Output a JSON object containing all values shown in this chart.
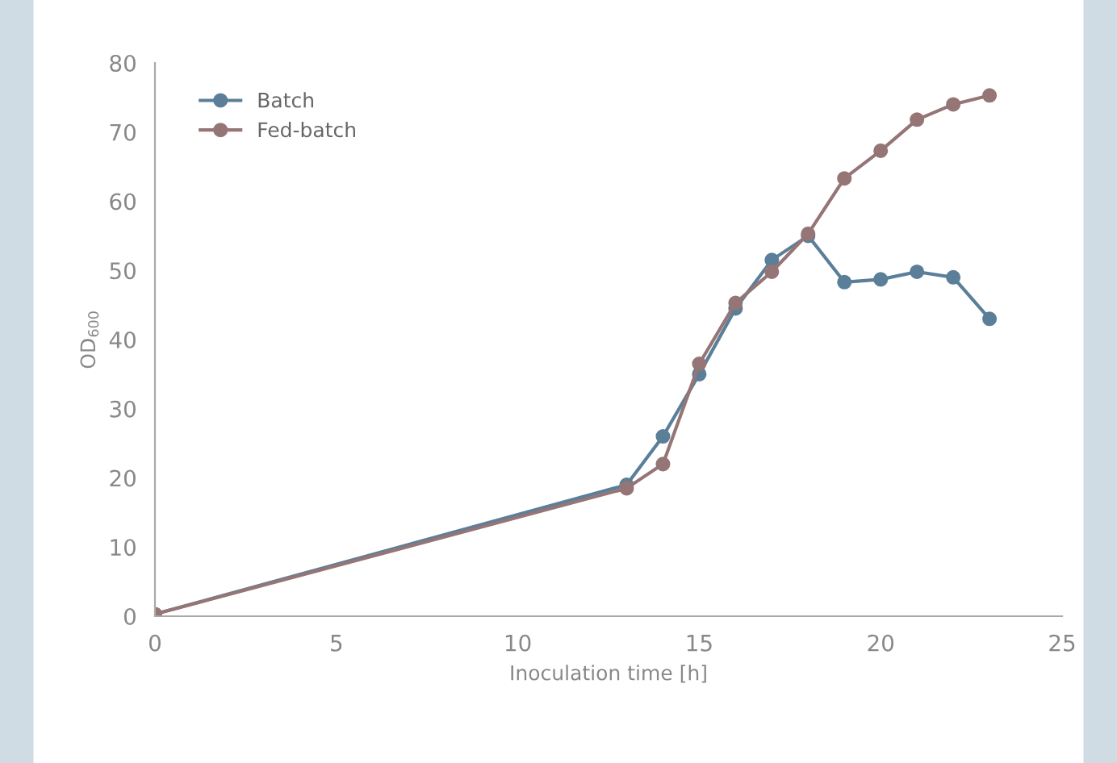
{
  "chart_data": {
    "type": "line",
    "xlabel": "Inoculation time [h]",
    "ylabel": "OD$_{600}$",
    "x": [
      0,
      13,
      14,
      15,
      16,
      17,
      18,
      19,
      20,
      21,
      22,
      23
    ],
    "series": [
      {
        "name": "Batch",
        "color": "#5b7f99",
        "values": [
          0.3,
          19,
          26,
          35,
          44.5,
          51.5,
          55,
          48.3,
          48.7,
          49.8,
          49,
          43
        ]
      },
      {
        "name": "Fed-batch",
        "color": "#957576",
        "values": [
          0.3,
          18.5,
          22,
          36.5,
          45.3,
          49.8,
          55.3,
          63.3,
          67.3,
          71.8,
          74,
          75.3
        ]
      }
    ],
    "xlim": [
      0,
      25
    ],
    "ylim": [
      0,
      80
    ],
    "xticks": [
      0,
      5,
      10,
      15,
      20,
      25
    ],
    "yticks": [
      0,
      10,
      20,
      30,
      40,
      50,
      60,
      70,
      80
    ],
    "grid": false,
    "legend": "top left",
    "marker": "circle",
    "line_style": "solid"
  }
}
